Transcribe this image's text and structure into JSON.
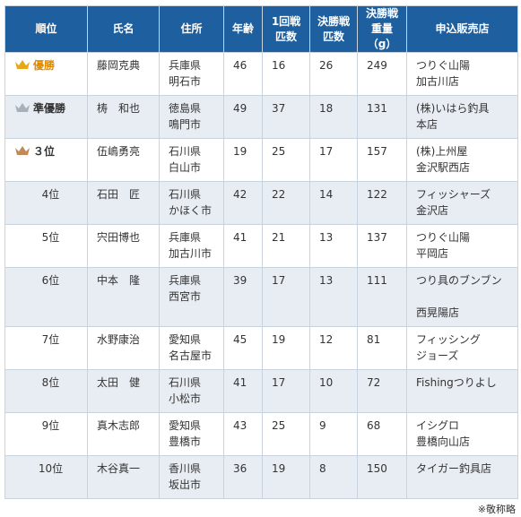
{
  "headers": {
    "rank": "順位",
    "name": "氏名",
    "address": "住所",
    "age": "年齢",
    "round1": [
      "1回戦",
      "匹数"
    ],
    "final_count": [
      "決勝戦",
      "匹数"
    ],
    "final_weight": [
      "決勝戦",
      "重量（g）"
    ],
    "shop": "申込販売店"
  },
  "rows": [
    {
      "rank": "優勝",
      "medal": "gold-crown-icon",
      "medal_color": "#e6a817",
      "name": "藤岡克典",
      "pref": "兵庫県",
      "city": "明石市",
      "age": "46",
      "round1": "16",
      "final_count": "26",
      "final_weight": "249",
      "shop1": "つりぐ山陽",
      "shop2": "加古川店"
    },
    {
      "rank": "準優勝",
      "medal": "silver-crown-icon",
      "medal_color": "#a9b0b8",
      "name": "梼　和也",
      "pref": "徳島県",
      "city": "鳴門市",
      "age": "49",
      "round1": "37",
      "final_count": "18",
      "final_weight": "131",
      "shop1": "(株)いはら釣具",
      "shop2": "本店"
    },
    {
      "rank": "３位",
      "medal": "bronze-crown-icon",
      "medal_color": "#c08a5a",
      "name": "伍嶋勇亮",
      "pref": "石川県",
      "city": "白山市",
      "age": "19",
      "round1": "25",
      "final_count": "17",
      "final_weight": "157",
      "shop1": "(株)上州屋",
      "shop2": "金沢駅西店"
    },
    {
      "rank": "4位",
      "name": "石田　匠",
      "pref": "石川県",
      "city": "かほく市",
      "age": "42",
      "round1": "22",
      "final_count": "14",
      "final_weight": "122",
      "shop1": "フィッシャーズ",
      "shop2": "金沢店"
    },
    {
      "rank": "5位",
      "name": "宍田博也",
      "pref": "兵庫県",
      "city": "加古川市",
      "age": "41",
      "round1": "21",
      "final_count": "13",
      "final_weight": "137",
      "shop1": "つりぐ山陽",
      "shop2": "平岡店"
    },
    {
      "rank": "6位",
      "name": "中本　隆",
      "pref": "兵庫県",
      "city": "西宮市",
      "age": "39",
      "round1": "17",
      "final_count": "13",
      "final_weight": "111",
      "shop1": "つり具のブンブン",
      "shop2": "西晃陽店"
    },
    {
      "rank": "7位",
      "name": "水野康治",
      "pref": "愛知県",
      "city": "名古屋市",
      "age": "45",
      "round1": "19",
      "final_count": "12",
      "final_weight": "81",
      "shop1": "フィッシング",
      "shop2": "ジョーズ"
    },
    {
      "rank": "8位",
      "name": "太田　健",
      "pref": "石川県",
      "city": "小松市",
      "age": "41",
      "round1": "17",
      "final_count": "10",
      "final_weight": "72",
      "shop1": "Fishingつりよし",
      "shop2": ""
    },
    {
      "rank": "9位",
      "name": "真木志郎",
      "pref": "愛知県",
      "city": "豊橋市",
      "age": "43",
      "round1": "25",
      "final_count": "9",
      "final_weight": "68",
      "shop1": "イシグロ",
      "shop2": "豊橋向山店"
    },
    {
      "rank": "10位",
      "name": "木谷真一",
      "pref": "香川県",
      "city": "坂出市",
      "age": "36",
      "round1": "19",
      "final_count": "8",
      "final_weight": "150",
      "shop1": "タイガー釣具店",
      "shop2": ""
    }
  ],
  "footnote": "※敬称略"
}
